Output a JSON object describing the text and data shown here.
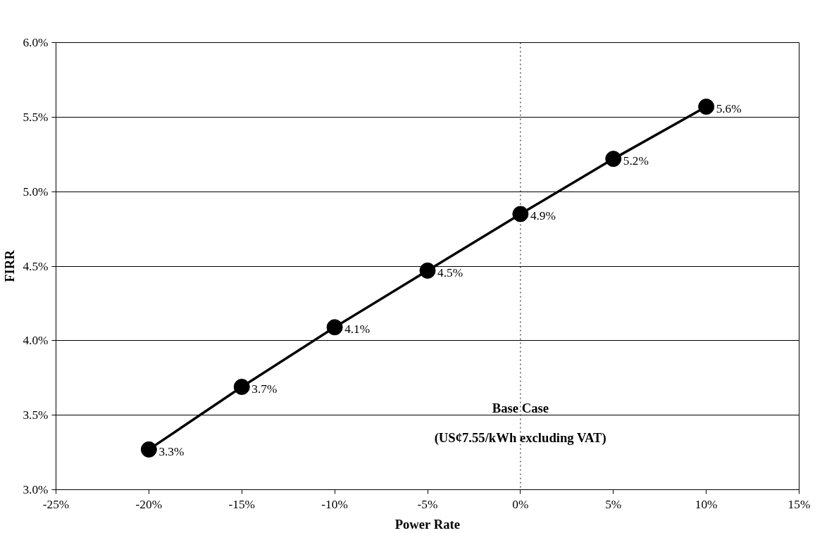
{
  "chart_data": {
    "type": "line",
    "xlabel": "Power Rate",
    "ylabel": "FIRR",
    "x": [
      -20,
      -15,
      -10,
      -5,
      0,
      5,
      10
    ],
    "series": [
      {
        "color": "#000000",
        "values": [
          3.27,
          3.69,
          4.09,
          4.47,
          4.85,
          5.22,
          5.57
        ],
        "value_labels": [
          "3.3%",
          "3.7%",
          "4.1%",
          "4.5%",
          "4.9%",
          "5.2%",
          "5.6%"
        ]
      }
    ],
    "xlim": [
      -25,
      15
    ],
    "xticks": [
      {
        "value": -25,
        "label": "-25%"
      },
      {
        "value": -20,
        "label": "-20%"
      },
      {
        "value": -15,
        "label": "-15%"
      },
      {
        "value": -10,
        "label": "-10%"
      },
      {
        "value": -5,
        "label": "-5%"
      },
      {
        "value": 0,
        "label": "0%"
      },
      {
        "value": 5,
        "label": "5%"
      },
      {
        "value": 10,
        "label": "10%"
      },
      {
        "value": 15,
        "label": "15%"
      }
    ],
    "ylim": [
      3.0,
      6.0
    ],
    "yticks": [
      {
        "value": 3.0,
        "label": "3.0%"
      },
      {
        "value": 3.5,
        "label": "3.5%"
      },
      {
        "value": 4.0,
        "label": "4.0%"
      },
      {
        "value": 4.5,
        "label": "4.5%"
      },
      {
        "value": 5.0,
        "label": "5.0%"
      },
      {
        "value": 5.5,
        "label": "5.5%"
      },
      {
        "value": 6.0,
        "label": "6.0%"
      }
    ],
    "ref_lines": [
      {
        "axis": "x",
        "value": 0,
        "line_style": "dotted",
        "color": "#000000"
      }
    ],
    "annotations": [
      {
        "text": "Base Case",
        "x": 0,
        "y": 3.55
      },
      {
        "text": "(US¢7.55/kWh excluding VAT)",
        "x": 0,
        "y": 3.35
      }
    ],
    "grid": "y",
    "marker": "circle",
    "line_style": "solid"
  }
}
